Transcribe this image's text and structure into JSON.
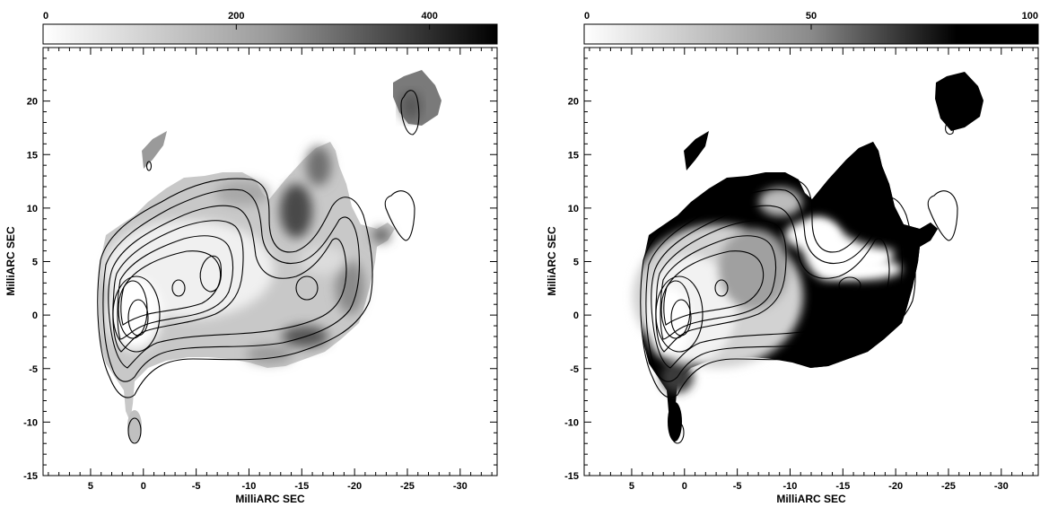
{
  "panels": [
    {
      "id": "left",
      "colorbar": {
        "min": 0,
        "max": 470,
        "labels": [
          "0",
          "200",
          "400"
        ],
        "label_values": [
          0,
          200,
          400
        ]
      },
      "xlabel": "MilliARC SEC",
      "ylabel": "MilliARC SEC",
      "x_ticks": [
        "5",
        "0",
        "-5",
        "-10",
        "-15",
        "-20",
        "-25",
        "-30"
      ],
      "x_tick_values": [
        5,
        0,
        -5,
        -10,
        -15,
        -20,
        -25,
        -30
      ],
      "y_ticks": [
        "20",
        "15",
        "10",
        "5",
        "0",
        "-5",
        "-10",
        "-15"
      ],
      "y_tick_values": [
        20,
        15,
        10,
        5,
        0,
        -5,
        -10,
        -15
      ],
      "xlim": [
        9.5,
        -33.5
      ],
      "ylim": [
        -15,
        25
      ]
    },
    {
      "id": "right",
      "colorbar": {
        "min": 0,
        "max": 100,
        "labels": [
          "0",
          "50",
          "100"
        ],
        "label_values": [
          0,
          50,
          100
        ]
      },
      "xlabel": "MilliARC SEC",
      "ylabel": "MilliARC SEC",
      "x_ticks": [
        "5",
        "0",
        "-5",
        "-10",
        "-15",
        "-20",
        "-25",
        "-30"
      ],
      "x_tick_values": [
        5,
        0,
        -5,
        -10,
        -15,
        -20,
        -25,
        -30
      ],
      "y_ticks": [
        "20",
        "15",
        "10",
        "5",
        "0",
        "-5",
        "-10",
        "-15"
      ],
      "y_tick_values": [
        20,
        15,
        10,
        5,
        0,
        -5,
        -10,
        -15
      ],
      "xlim": [
        9.5,
        -33.5
      ],
      "ylim": [
        -15,
        25
      ]
    }
  ]
}
